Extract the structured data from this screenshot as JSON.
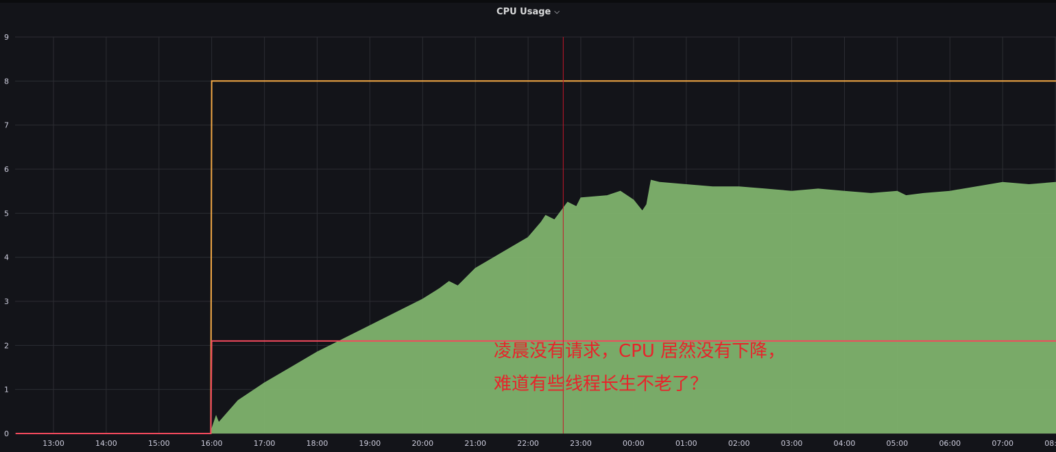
{
  "panel": {
    "title": "CPU Usage",
    "menu_icon": "chevron-down-icon"
  },
  "annotation": {
    "line1": "凌晨没有请求，CPU 居然没有下降，",
    "line2": "难道有些线程长生不老了？",
    "color": "#e8232b"
  },
  "chart_data": {
    "type": "area",
    "title": "CPU Usage",
    "xlabel": "",
    "ylabel": "",
    "ylim": [
      0,
      9
    ],
    "xlim": [
      "12:17",
      "08:10"
    ],
    "yticks": [
      "0",
      "1",
      "2",
      "3",
      "4",
      "5",
      "6",
      "7",
      "8",
      "9"
    ],
    "xticks": [
      "13:00",
      "14:00",
      "15:00",
      "16:00",
      "17:00",
      "18:00",
      "19:00",
      "20:00",
      "21:00",
      "22:00",
      "23:00",
      "00:00",
      "01:00",
      "02:00",
      "03:00",
      "04:00",
      "05:00",
      "06:00",
      "07:00",
      "08:00"
    ],
    "grid": true,
    "legend": "none",
    "marker": "22:40",
    "series": [
      {
        "role": "usage",
        "color": "#7eb26d",
        "style": "area",
        "x": [
          "12:17",
          "15:59",
          "16:00",
          "16:05",
          "16:08",
          "16:30",
          "17:00",
          "17:30",
          "18:00",
          "18:30",
          "19:00",
          "19:30",
          "20:00",
          "20:20",
          "20:30",
          "20:40",
          "21:00",
          "21:30",
          "22:00",
          "22:15",
          "22:20",
          "22:30",
          "22:45",
          "22:55",
          "23:00",
          "23:30",
          "23:45",
          "00:00",
          "00:10",
          "00:15",
          "00:20",
          "00:30",
          "01:00",
          "01:30",
          "02:00",
          "02:30",
          "03:00",
          "03:30",
          "04:00",
          "04:30",
          "05:00",
          "05:10",
          "05:30",
          "06:00",
          "06:30",
          "07:00",
          "07:30",
          "08:00",
          "08:10"
        ],
        "y": [
          0,
          0,
          0.1,
          0.4,
          0.25,
          0.75,
          1.15,
          1.5,
          1.85,
          2.15,
          2.45,
          2.75,
          3.05,
          3.3,
          3.45,
          3.35,
          3.75,
          4.1,
          4.45,
          4.8,
          4.95,
          4.85,
          5.25,
          5.15,
          5.35,
          5.4,
          5.5,
          5.3,
          5.05,
          5.2,
          5.75,
          5.7,
          5.65,
          5.6,
          5.6,
          5.55,
          5.5,
          5.55,
          5.5,
          5.45,
          5.5,
          5.4,
          5.45,
          5.5,
          5.6,
          5.7,
          5.65,
          5.7,
          5.7
        ]
      },
      {
        "role": "limit",
        "color": "#f2a845",
        "style": "line",
        "x": [
          "12:17",
          "15:59",
          "16:00",
          "08:10"
        ],
        "y": [
          0,
          0,
          8,
          8
        ]
      },
      {
        "role": "request",
        "color": "#f2495c",
        "style": "line",
        "x": [
          "12:17",
          "15:59",
          "16:00",
          "08:10"
        ],
        "y": [
          0,
          0,
          2.1,
          2.1
        ]
      }
    ]
  }
}
